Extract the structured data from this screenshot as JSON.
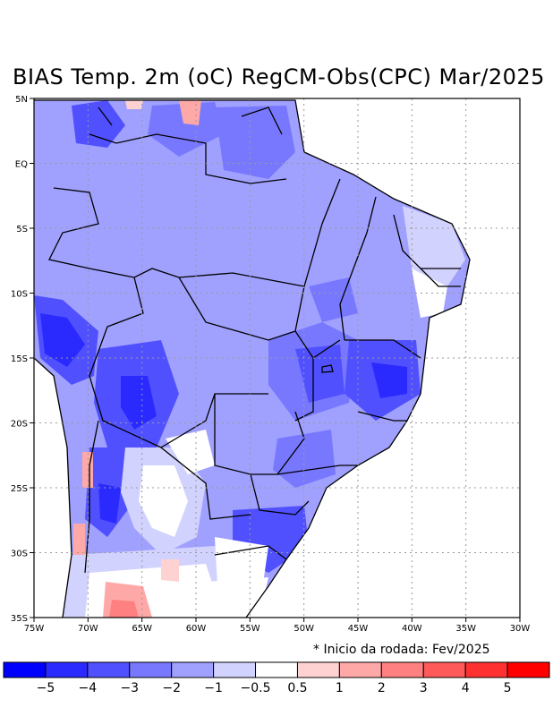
{
  "title": "BIAS Temp. 2m (oC) RegCM-Obs(CPC) Mar/2025",
  "note": "* Inicio da rodada: Fev/2025",
  "map": {
    "lon_range": [
      -75,
      -30
    ],
    "lat_range": [
      -35,
      5
    ],
    "lon_ticks": [
      "75W",
      "70W",
      "65W",
      "60W",
      "55W",
      "50W",
      "45W",
      "40W",
      "35W",
      "30W"
    ],
    "lat_ticks": [
      "5N",
      "EQ",
      "5S",
      "10S",
      "15S",
      "20S",
      "25S",
      "30S",
      "35S"
    ]
  },
  "colorbar": {
    "colors": [
      "#0000ff",
      "#2a2aff",
      "#5050ff",
      "#7878ff",
      "#a0a0ff",
      "#d2d2ff",
      "#ffffff",
      "#ffd2d2",
      "#ffa8a8",
      "#ff8080",
      "#ff5a5a",
      "#ff3030",
      "#ff0000"
    ],
    "labels": [
      "−5",
      "−4",
      "−3",
      "−2",
      "−1",
      "−0.5",
      "0.5",
      "1",
      "2",
      "3",
      "4",
      "5"
    ]
  }
}
